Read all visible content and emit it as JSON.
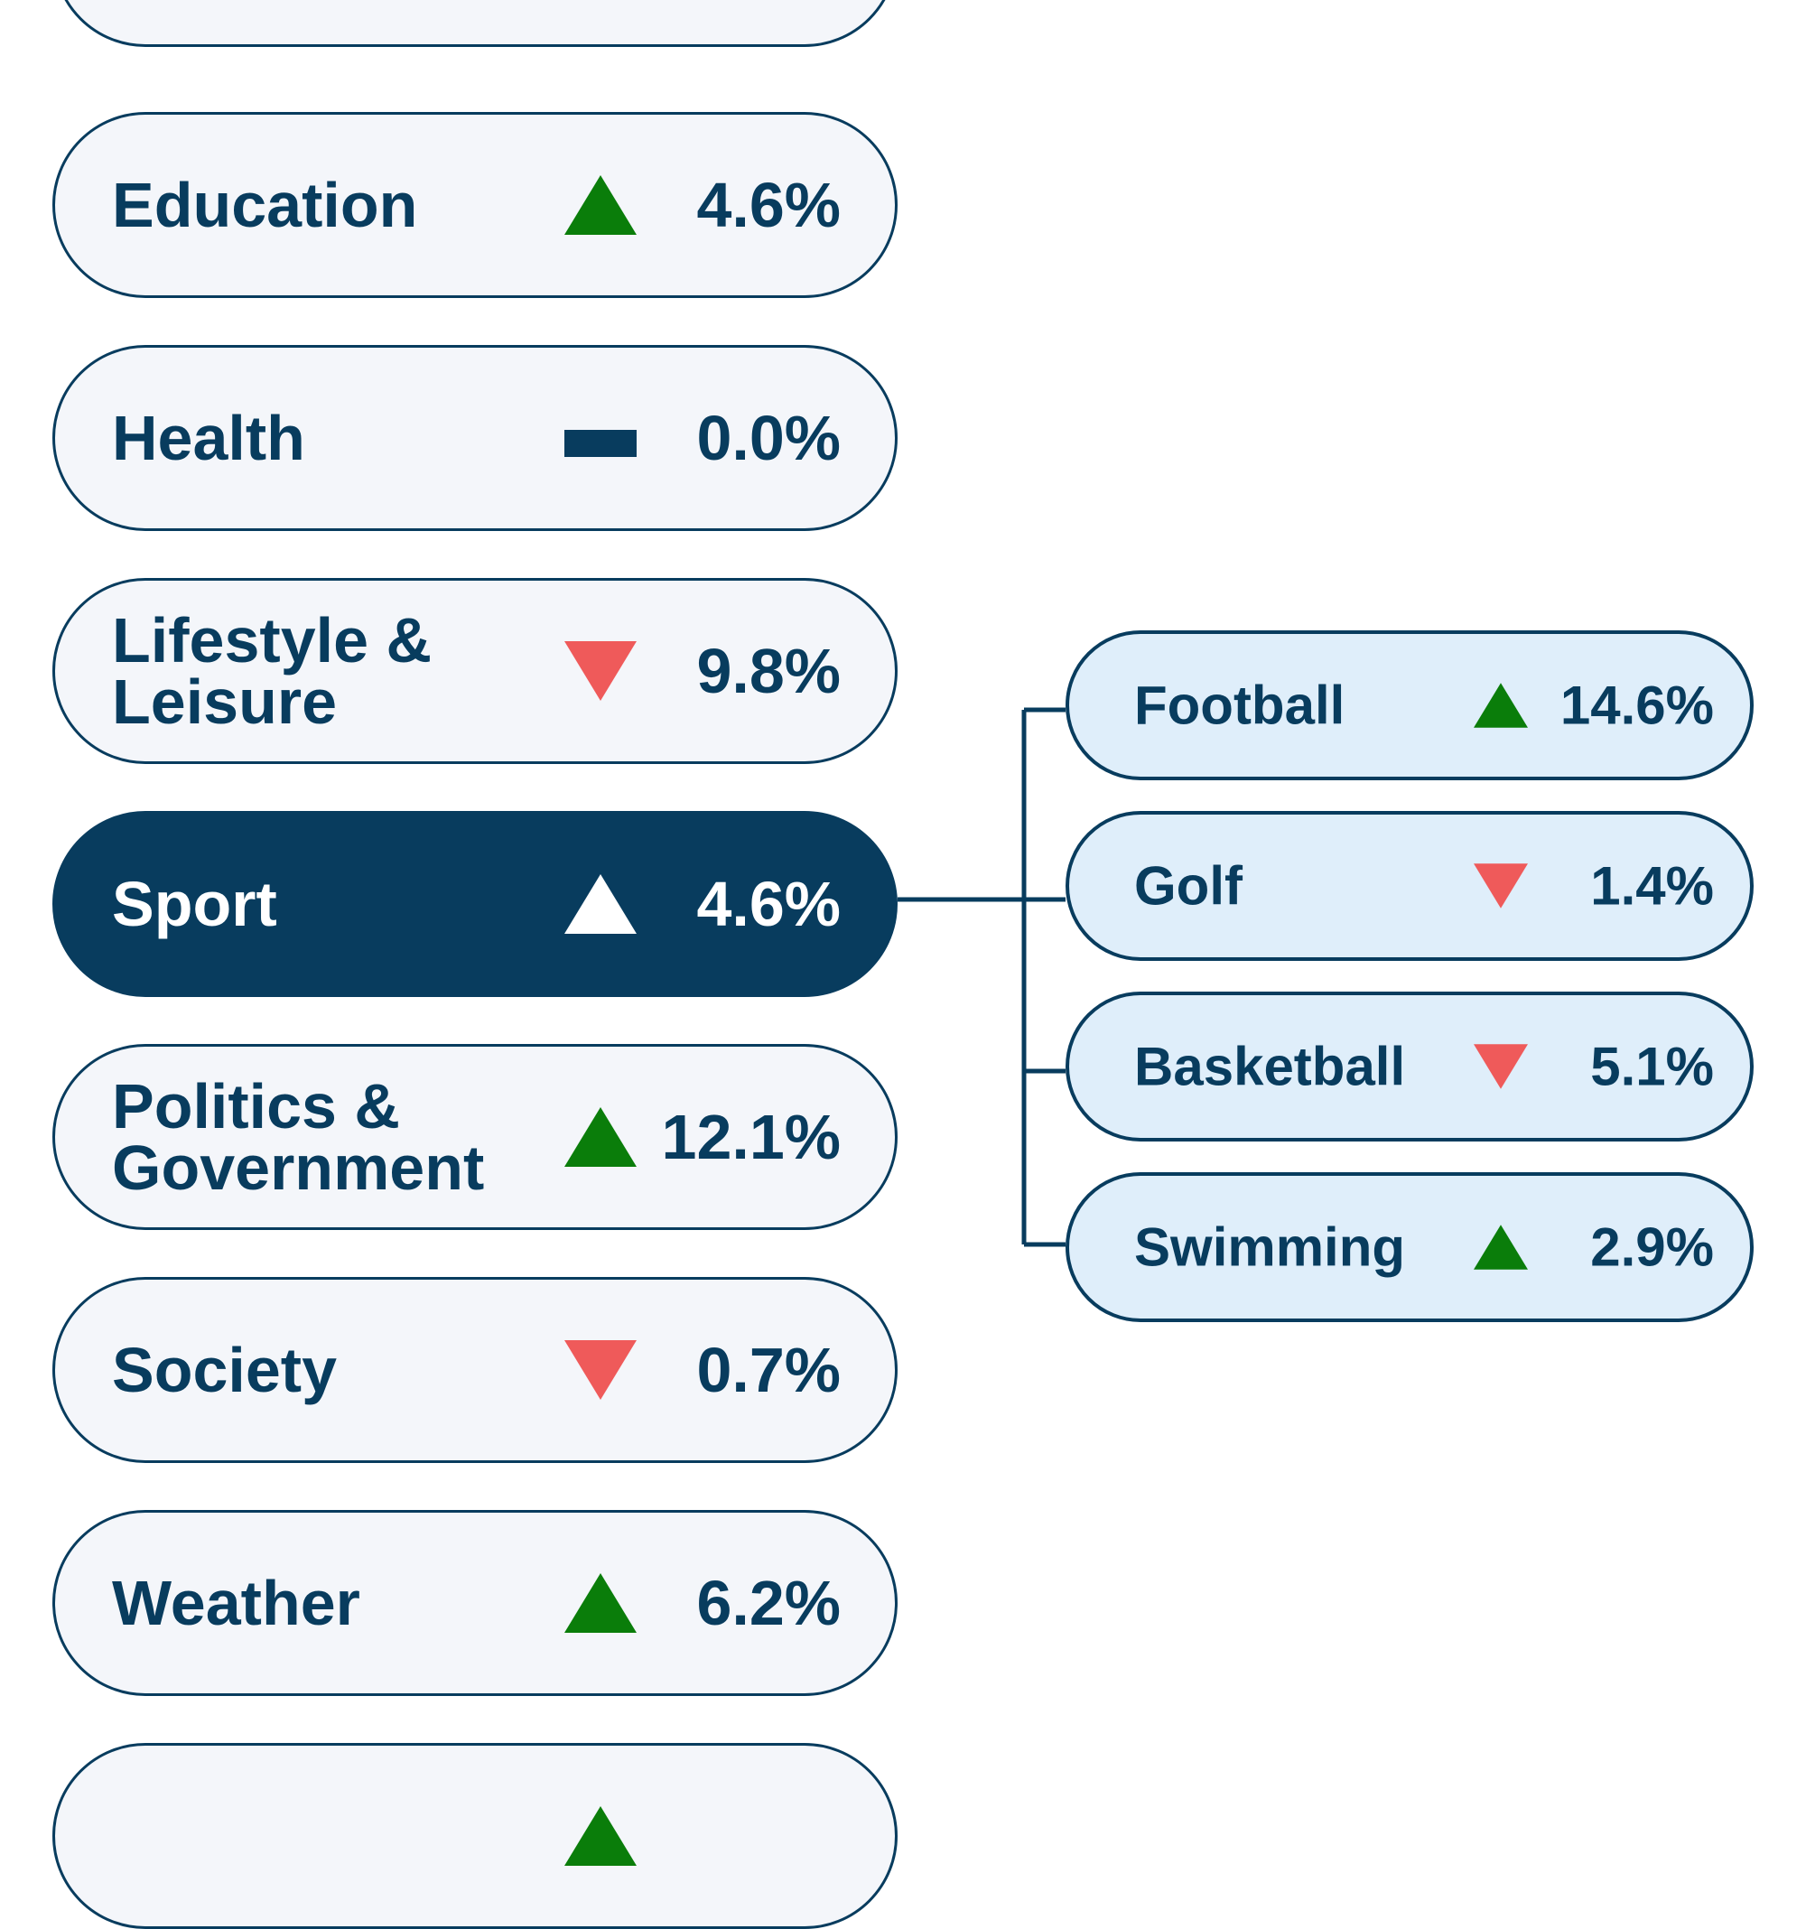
{
  "colors": {
    "navy": "#083c5e",
    "up": "#0a7d0a",
    "down": "#ef5a5a",
    "pill_bg": "#f4f6fa",
    "sub_bg": "#dfeefa"
  },
  "categories": [
    {
      "label": "",
      "trend": "none",
      "value": ""
    },
    {
      "label": "Education",
      "trend": "up",
      "value": "4.6%"
    },
    {
      "label": "Health",
      "trend": "flat",
      "value": "0.0%"
    },
    {
      "label": "Lifestyle &\nLeisure",
      "trend": "down",
      "value": "9.8%"
    },
    {
      "label": "Sport",
      "trend": "up",
      "value": "4.6%",
      "selected": true
    },
    {
      "label": "Politics &\nGovernment",
      "trend": "up",
      "value": "12.1%"
    },
    {
      "label": "Society",
      "trend": "down",
      "value": "0.7%"
    },
    {
      "label": "Weather",
      "trend": "up",
      "value": "6.2%"
    },
    {
      "label": "",
      "trend": "up",
      "value": ""
    }
  ],
  "subcategories": [
    {
      "label": "Football",
      "trend": "up",
      "value": "14.6%"
    },
    {
      "label": "Golf",
      "trend": "down",
      "value": "1.4%"
    },
    {
      "label": "Basketball",
      "trend": "down",
      "value": "5.1%"
    },
    {
      "label": "Swimming",
      "trend": "up",
      "value": "2.9%"
    }
  ]
}
